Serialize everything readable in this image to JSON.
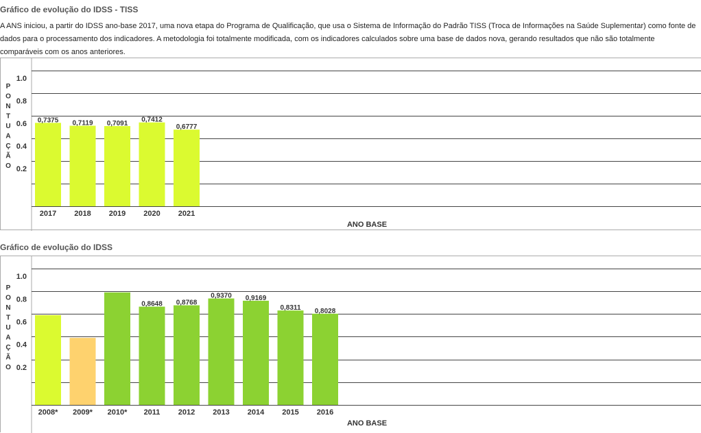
{
  "sections": [
    {
      "title": "Gráfico de evolução do IDSS - TISS",
      "intro": "A ANS iniciou, a partir do IDSS ano-base 2017, uma nova etapa do Programa de Qualificação, que usa o Sistema de Informação do Padrão TISS (Troca de Informações na Saúde Suplementar) como fonte de dados para o processamento dos indicadores. A metodologia foi totalmente modificada, com os indicadores calculados sobre uma base de dados nova, gerando resultados que não são totalmente comparáveis com os anos anteriores."
    },
    {
      "title": "Gráfico de evolução do IDSS"
    }
  ],
  "chart_data": [
    {
      "type": "bar",
      "title": "Gráfico de evolução do IDSS - TISS",
      "xlabel": "ANO BASE",
      "ylabel": "PONTUAÇÃO",
      "ylim": [
        0,
        1.2
      ],
      "yticks": [
        "0.2",
        "0.4",
        "0.6",
        "0.8",
        "1.0"
      ],
      "grid": true,
      "categories": [
        "2017",
        "2018",
        "2019",
        "2020",
        "2021"
      ],
      "values": [
        0.7375,
        0.7119,
        0.7091,
        0.7412,
        0.6777
      ],
      "data_labels": [
        "0,7375",
        "0,7119",
        "0,7091",
        "0,7412",
        "0,6777"
      ],
      "colors": [
        "#dbfa30",
        "#dbfa30",
        "#dbfa30",
        "#dbfa30",
        "#dbfa30"
      ]
    },
    {
      "type": "bar",
      "title": "Gráfico de evolução do IDSS",
      "xlabel": "ANO BASE",
      "ylabel": "PONTUAÇÃO",
      "ylim": [
        0,
        1.2
      ],
      "yticks": [
        "0.2",
        "0.4",
        "0.6",
        "0.8",
        "1.0"
      ],
      "grid": true,
      "categories": [
        "2008*",
        "2009*",
        "2010*",
        "2011",
        "2012",
        "2013",
        "2014",
        "2015",
        "2016"
      ],
      "values": [
        0.79,
        0.59,
        0.99,
        0.8648,
        0.8768,
        0.937,
        0.9169,
        0.8311,
        0.8028
      ],
      "data_labels": [
        "",
        "",
        "",
        "0,8648",
        "0,8768",
        "0,9370",
        "0,9169",
        "0,8311",
        "0,8028"
      ],
      "colors": [
        "#dbfa30",
        "#fed26e",
        "#8cd232",
        "#8cd232",
        "#8cd232",
        "#8cd232",
        "#8cd232",
        "#8cd232",
        "#8cd232"
      ]
    }
  ]
}
